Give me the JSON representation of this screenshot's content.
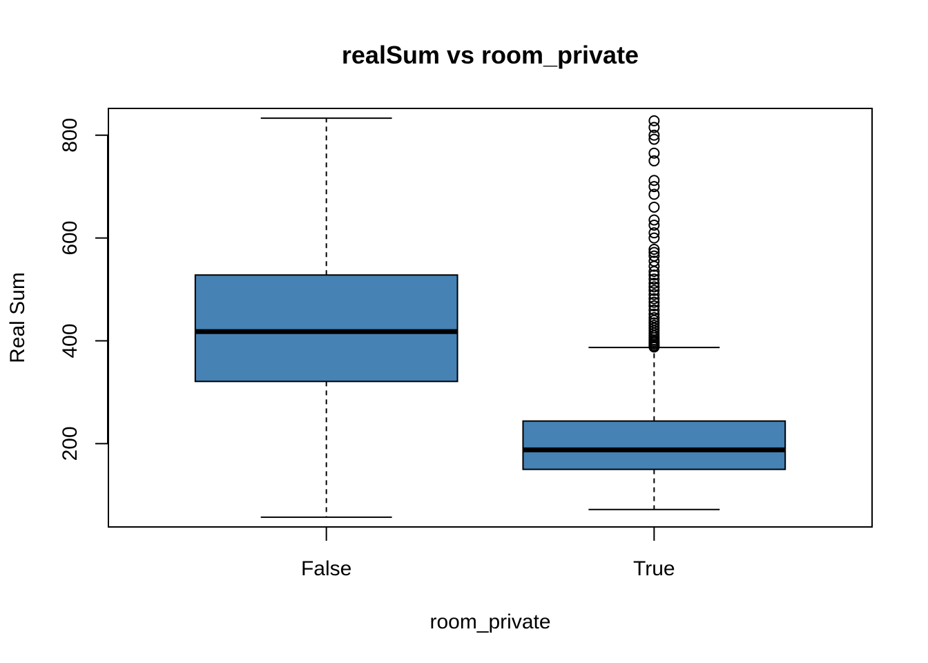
{
  "chart_data": {
    "type": "box",
    "title": "realSum vs room_private",
    "xlabel": "room_private",
    "ylabel": "Real Sum",
    "categories": [
      "False",
      "True"
    ],
    "yticks": [
      200,
      400,
      600,
      800
    ],
    "ylim": [
      38,
      852
    ],
    "box_color": "#4682B4",
    "boxes": [
      {
        "category": "False",
        "whisker_low": 57,
        "q1": 321,
        "median": 418,
        "q3": 528,
        "whisker_high": 833,
        "outliers": []
      },
      {
        "category": "True",
        "whisker_low": 72,
        "q1": 150,
        "median": 188,
        "q3": 244,
        "whisker_high": 387,
        "outliers": [
          388,
          390,
          393,
          396,
          399,
          402,
          406,
          410,
          415,
          420,
          425,
          430,
          435,
          440,
          445,
          452,
          460,
          468,
          475,
          482,
          490,
          498,
          505,
          512,
          520,
          528,
          535,
          545,
          555,
          565,
          572,
          578,
          600,
          610,
          625,
          635,
          660,
          685,
          700,
          712,
          750,
          765,
          792,
          800,
          815,
          828
        ]
      }
    ]
  }
}
